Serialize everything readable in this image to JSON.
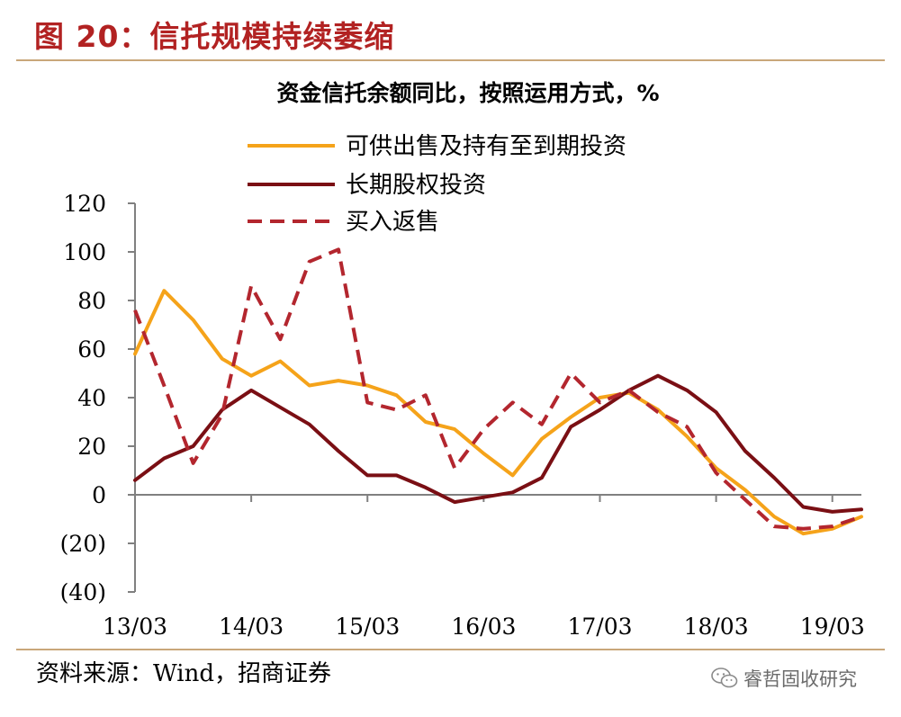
{
  "header": {
    "figure_title": "图 20：信托规模持续萎缩"
  },
  "footer": {
    "source": "资料来源：Wind，招商证券",
    "watermark": "睿哲固收研究",
    "watermark_icon": "wechat-icon"
  },
  "colors": {
    "title": "#b22222",
    "rule": "#c9a77a",
    "series_1": "#f5a31a",
    "series_2": "#7a0f14",
    "series_3": "#b3262e"
  },
  "chart_data": {
    "type": "line",
    "title": "资金信托余额同比，按照运用方式，%",
    "xlabel": "",
    "ylabel": "",
    "ylim": [
      -40,
      120
    ],
    "yticks": [
      120,
      100,
      80,
      60,
      40,
      20,
      0,
      -20,
      -40
    ],
    "ytick_labels": [
      "120",
      "100",
      "80",
      "60",
      "40",
      "20",
      "0",
      "(20)",
      "(40)"
    ],
    "x_tick_labels": [
      "13/03",
      "14/03",
      "15/03",
      "16/03",
      "17/03",
      "18/03",
      "19/03"
    ],
    "x_tick_positions": [
      0,
      4,
      8,
      12,
      16,
      20,
      24
    ],
    "x": [
      "13/03",
      "13/06",
      "13/09",
      "13/12",
      "14/03",
      "14/06",
      "14/09",
      "14/12",
      "15/03",
      "15/06",
      "15/09",
      "15/12",
      "16/03",
      "16/06",
      "16/09",
      "16/12",
      "17/03",
      "17/06",
      "17/09",
      "17/12",
      "18/03",
      "18/06",
      "18/09",
      "18/12",
      "19/03",
      "19/06"
    ],
    "grid": false,
    "legend_position": "top",
    "series": [
      {
        "name": "可供出售及持有至到期投资",
        "color": "#f5a31a",
        "style": "solid",
        "values": [
          58,
          84,
          72,
          56,
          49,
          55,
          45,
          47,
          45,
          41,
          30,
          27,
          17,
          8,
          23,
          32,
          40,
          42,
          35,
          24,
          11,
          2,
          -9,
          -16,
          -14,
          -9
        ]
      },
      {
        "name": "长期股权投资",
        "color": "#7a0f14",
        "style": "solid",
        "values": [
          6,
          15,
          20,
          35,
          43,
          36,
          29,
          18,
          8,
          8,
          3,
          -3,
          -1,
          1,
          7,
          28,
          35,
          43,
          49,
          43,
          34,
          18,
          7,
          -5,
          -7,
          -6
        ]
      },
      {
        "name": "买入返售",
        "color": "#b3262e",
        "style": "dashed",
        "values": [
          76,
          45,
          13,
          33,
          86,
          64,
          96,
          101,
          38,
          35,
          41,
          11,
          27,
          38,
          29,
          50,
          38,
          43,
          34,
          28,
          9,
          -2,
          -13,
          -14,
          -13,
          -9
        ]
      }
    ]
  }
}
